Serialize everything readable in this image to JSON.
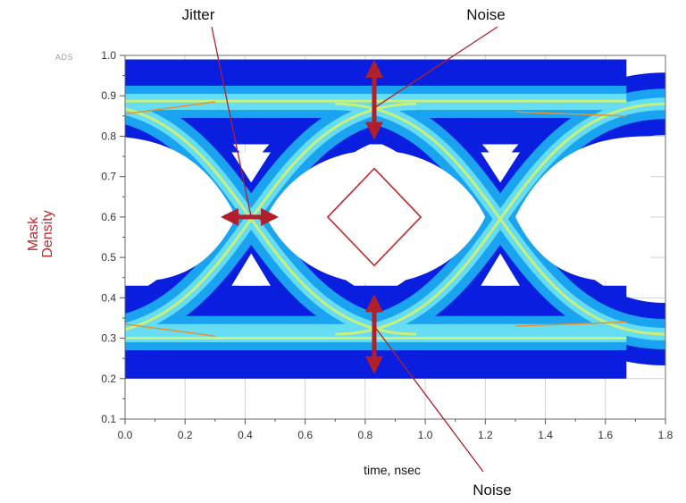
{
  "chart_data": {
    "type": "heatmap",
    "subtype": "eye-diagram",
    "brand": "ADS",
    "xlabel": "time, nsec",
    "ylabel_lines": [
      "Mask",
      "Density"
    ],
    "xlim": [
      0.0,
      1.8
    ],
    "ylim": [
      0.1,
      1.0
    ],
    "x_ticks": [
      "0.0",
      "0.2",
      "0.4",
      "0.6",
      "0.8",
      "1.0",
      "1.2",
      "1.4",
      "1.6",
      "1.8"
    ],
    "y_ticks": [
      "0.1",
      "0.2",
      "0.3",
      "0.4",
      "0.5",
      "0.6",
      "0.7",
      "0.8",
      "0.9",
      "1.0"
    ],
    "grid": true,
    "eye": {
      "x_range": [
        0.0,
        1.67
      ],
      "high_band": [
        0.82,
        0.99
      ],
      "low_band": [
        0.2,
        0.43
      ],
      "high_level": 0.88,
      "low_level": 0.31,
      "crossings": [
        {
          "x": 0.42,
          "y": 0.6
        },
        {
          "x": 1.25,
          "y": 0.6
        }
      ],
      "edge_half_width": 0.55
    },
    "mask": {
      "shape": "diamond",
      "center": [
        0.83,
        0.6
      ],
      "half_width": 0.155,
      "half_height": 0.12,
      "color": "#c0282d"
    },
    "annotations": [
      {
        "label": "Jitter",
        "target": [
          0.42,
          0.6
        ],
        "kind": "horizontal-span",
        "span": [
          0.33,
          0.5
        ]
      },
      {
        "label": "Noise",
        "target": [
          0.83,
          0.87
        ],
        "kind": "vertical-span",
        "span": [
          0.8,
          0.98
        ]
      },
      {
        "label": "Noise",
        "target": [
          0.83,
          0.33
        ],
        "kind": "vertical-span",
        "span": [
          0.22,
          0.4
        ]
      }
    ],
    "colors": {
      "outer": "#0a1ee0",
      "mid": "#1aa3f0",
      "inner": "#66ddf2",
      "core": "#c9f07a",
      "hot": "#e8922a",
      "annotation": "#b0202a"
    }
  }
}
